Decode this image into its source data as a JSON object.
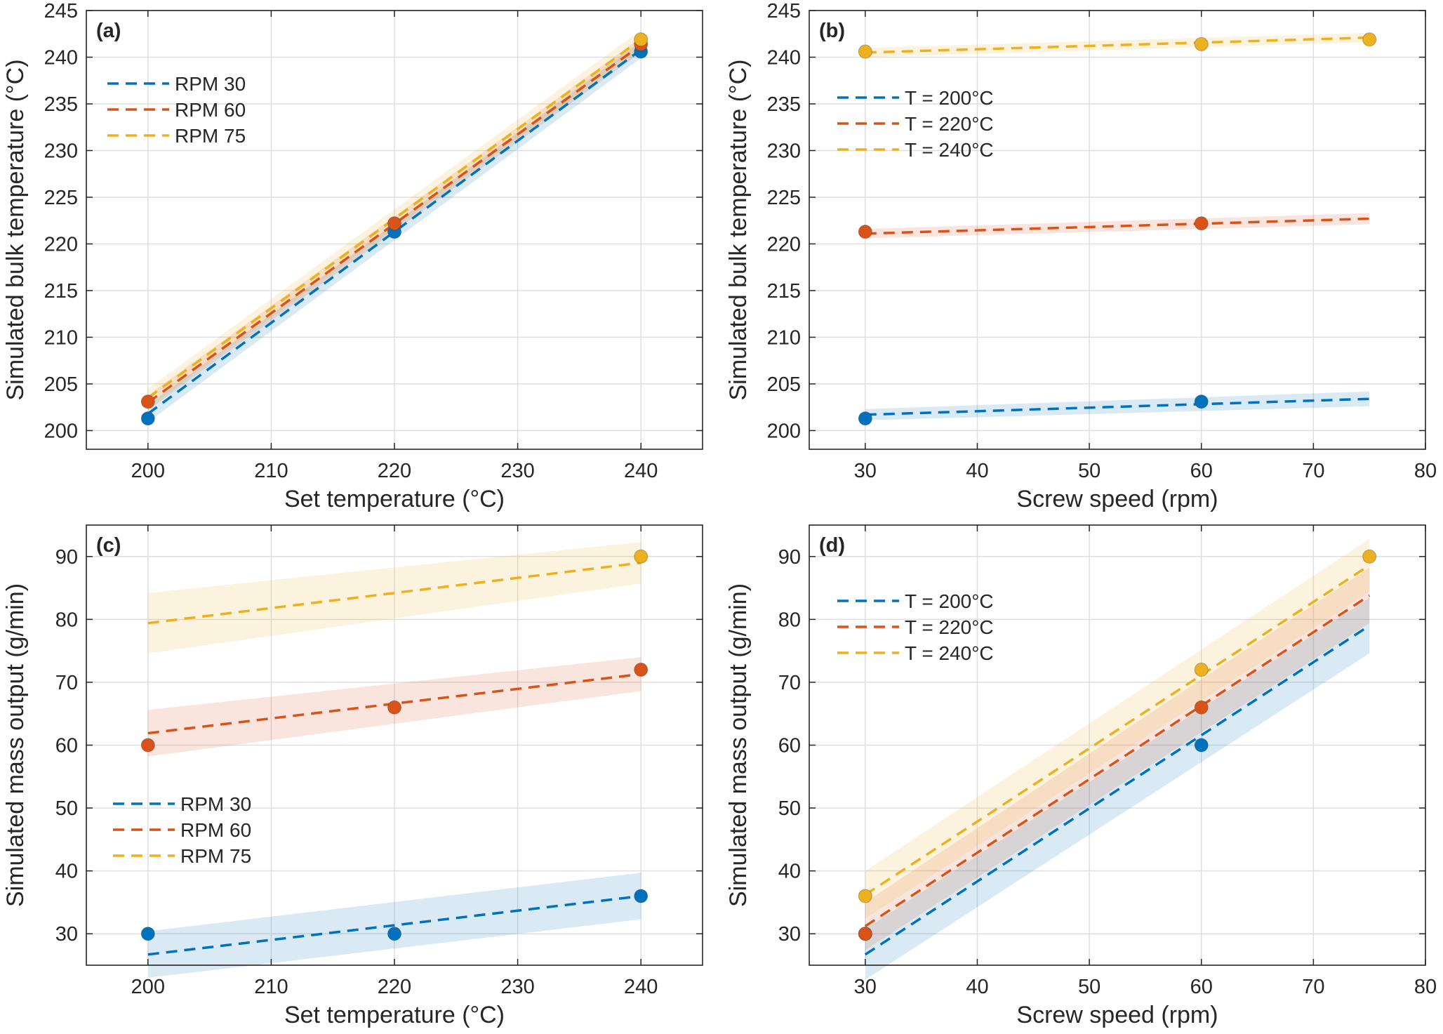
{
  "colors": {
    "series1": "#0072BD",
    "series2": "#D95319",
    "series3": "#EDB120",
    "grid": "#dfdfdf",
    "axis": "#262626"
  },
  "chart_data": [
    {
      "panel": "(a)",
      "type": "line",
      "title": "",
      "xlabel": "Set temperature (°C)",
      "ylabel": "Simulated bulk temperature (°C)",
      "xlim": [
        195,
        245
      ],
      "ylim": [
        198,
        245
      ],
      "xticks": [
        200,
        210,
        220,
        230,
        240
      ],
      "yticks": [
        200,
        205,
        210,
        215,
        220,
        225,
        230,
        235,
        240,
        245
      ],
      "grid": true,
      "legend_position": "top-left",
      "series": [
        {
          "name": "RPM 30",
          "color": "#0072BD",
          "x": [
            200,
            220,
            240
          ],
          "y": [
            201.3,
            221.3,
            240.6
          ],
          "fit": [
            [
              200,
              201.8
            ],
            [
              240,
              240.8
            ]
          ],
          "band": [
            [
              200,
              200.9,
              202.7
            ],
            [
              240,
              239.9,
              241.7
            ]
          ]
        },
        {
          "name": "RPM 60",
          "color": "#D95319",
          "x": [
            200,
            220,
            240
          ],
          "y": [
            203.1,
            222.2,
            241.4
          ],
          "fit": [
            [
              200,
              203.0
            ],
            [
              240,
              241.3
            ]
          ],
          "band": [
            [
              200,
              202.2,
              203.8
            ],
            [
              240,
              240.5,
              242.1
            ]
          ]
        },
        {
          "name": "RPM 75",
          "color": "#EDB120",
          "x": [
            240
          ],
          "y": [
            241.9
          ],
          "fit": [
            [
              200,
              203.5
            ],
            [
              240,
              241.9
            ]
          ],
          "band": [
            [
              200,
              202.5,
              204.5
            ],
            [
              240,
              240.9,
              242.9
            ]
          ]
        }
      ]
    },
    {
      "panel": "(b)",
      "type": "line",
      "title": "",
      "xlabel": "Screw speed (rpm)",
      "ylabel": "Simulated bulk temperature (°C)",
      "xlim": [
        25,
        80
      ],
      "ylim": [
        198,
        245
      ],
      "xticks": [
        30,
        40,
        50,
        60,
        70,
        80
      ],
      "yticks": [
        200,
        205,
        210,
        215,
        220,
        225,
        230,
        235,
        240,
        245
      ],
      "grid": true,
      "legend_position": "upper-left",
      "series": [
        {
          "name": "T = 200°C",
          "color": "#0072BD",
          "x": [
            30,
            60
          ],
          "y": [
            201.3,
            203.1
          ],
          "fit": [
            [
              30,
              201.7
            ],
            [
              75,
              203.4
            ]
          ],
          "band": [
            [
              30,
              201.1,
              202.3
            ],
            [
              75,
              202.6,
              204.2
            ]
          ]
        },
        {
          "name": "T = 220°C",
          "color": "#D95319",
          "x": [
            30,
            60
          ],
          "y": [
            221.3,
            222.2
          ],
          "fit": [
            [
              30,
              221.1
            ],
            [
              75,
              222.7
            ]
          ],
          "band": [
            [
              30,
              220.6,
              221.6
            ],
            [
              75,
              222.1,
              223.3
            ]
          ]
        },
        {
          "name": "T = 240°C",
          "color": "#EDB120",
          "x": [
            30,
            60,
            75
          ],
          "y": [
            240.6,
            241.4,
            241.9
          ],
          "fit": [
            [
              30,
              240.5
            ],
            [
              75,
              242.1
            ]
          ],
          "band": [
            [
              30,
              240.0,
              241.0
            ],
            [
              75,
              241.6,
              242.6
            ]
          ]
        }
      ]
    },
    {
      "panel": "(c)",
      "type": "line",
      "title": "",
      "xlabel": "Set temperature (°C)",
      "ylabel": "Simulated mass output (g/min)",
      "xlim": [
        195,
        245
      ],
      "ylim": [
        25,
        95
      ],
      "xticks": [
        200,
        210,
        220,
        230,
        240
      ],
      "yticks": [
        30,
        40,
        50,
        60,
        70,
        80,
        90
      ],
      "grid": true,
      "legend_position": "lower-left",
      "series": [
        {
          "name": "RPM 30",
          "color": "#0072BD",
          "x": [
            200,
            220,
            240
          ],
          "y": [
            30,
            30,
            36
          ],
          "fit": [
            [
              200,
              26.7
            ],
            [
              240,
              36.0
            ]
          ],
          "band": [
            [
              200,
              23.0,
              30.4
            ],
            [
              240,
              32.3,
              39.7
            ]
          ]
        },
        {
          "name": "RPM 60",
          "color": "#D95319",
          "x": [
            200,
            220,
            240
          ],
          "y": [
            60,
            66,
            72
          ],
          "fit": [
            [
              200,
              61.9
            ],
            [
              240,
              71.3
            ]
          ],
          "band": [
            [
              200,
              58.2,
              65.6
            ],
            [
              240,
              68.6,
              74.0
            ]
          ]
        },
        {
          "name": "RPM 75",
          "color": "#EDB120",
          "x": [
            240
          ],
          "y": [
            90
          ],
          "fit": [
            [
              200,
              79.4
            ],
            [
              240,
              89.0
            ]
          ],
          "band": [
            [
              200,
              74.6,
              84.2
            ],
            [
              240,
              85.7,
              92.3
            ]
          ]
        }
      ]
    },
    {
      "panel": "(d)",
      "type": "line",
      "title": "",
      "xlabel": "Screw speed (rpm)",
      "ylabel": "Simulated mass output (g/min)",
      "xlim": [
        25,
        80
      ],
      "ylim": [
        25,
        95
      ],
      "xticks": [
        30,
        40,
        50,
        60,
        70,
        80
      ],
      "yticks": [
        30,
        40,
        50,
        60,
        70,
        80,
        90
      ],
      "grid": true,
      "legend_position": "top-left",
      "series": [
        {
          "name": "T = 200°C",
          "color": "#0072BD",
          "x": [
            30,
            60
          ],
          "y": [
            30,
            60
          ],
          "fit": [
            [
              30,
              26.7
            ],
            [
              75,
              79.0
            ]
          ],
          "band": [
            [
              30,
              22.7,
              30.7
            ],
            [
              75,
              74.6,
              83.4
            ]
          ]
        },
        {
          "name": "T = 220°C",
          "color": "#D95319",
          "x": [
            30,
            60
          ],
          "y": [
            30,
            66
          ],
          "fit": [
            [
              30,
              31.2
            ],
            [
              75,
              83.8
            ]
          ],
          "band": [
            [
              30,
              27.4,
              35.0
            ],
            [
              75,
              79.4,
              88.2
            ]
          ]
        },
        {
          "name": "T = 240°C",
          "color": "#EDB120",
          "x": [
            30,
            60,
            75
          ],
          "y": [
            36,
            72,
            90
          ],
          "fit": [
            [
              30,
              36.2
            ],
            [
              75,
              88.6
            ]
          ],
          "band": [
            [
              30,
              32.4,
              40.0
            ],
            [
              75,
              84.4,
              92.8
            ]
          ]
        }
      ]
    }
  ]
}
